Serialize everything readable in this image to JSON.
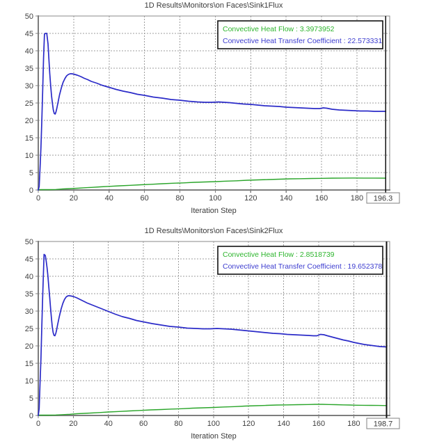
{
  "x_axis_label": "Iteration Step",
  "chart_data": [
    {
      "type": "line",
      "title": "1D Results\\Monitors\\on Faces\\Sink1Flux",
      "xlabel": "Iteration Step",
      "ylabel": "",
      "xlim": [
        0,
        198.5
      ],
      "ylim": [
        0,
        50
      ],
      "x_ticks": [
        0,
        20,
        40,
        60,
        80,
        100,
        120,
        140,
        160,
        180
      ],
      "y_ticks": [
        0,
        5,
        10,
        15,
        20,
        25,
        30,
        35,
        40,
        45,
        50
      ],
      "grid": true,
      "legend_position": "top-right",
      "cursor_x": 196.3,
      "cursor_label": "196.3",
      "legend": [
        {
          "label": "Convective Heat Flow : 3.3973952",
          "color": "#2db52d"
        },
        {
          "label": "Convective Heat Transfer Coefficient : 22.573331",
          "color": "#3c3ccf"
        }
      ],
      "series": [
        {
          "name": "Convective Heat Transfer Coefficient",
          "color": "#2b2bc8",
          "width": 1.7,
          "points": [
            [
              0,
              0
            ],
            [
              0.5,
              1
            ],
            [
              1,
              6
            ],
            [
              1.5,
              12
            ],
            [
              2,
              20
            ],
            [
              2.5,
              29
            ],
            [
              3,
              38
            ],
            [
              3.5,
              44.8
            ],
            [
              4,
              45
            ],
            [
              4.8,
              45
            ],
            [
              5.5,
              42
            ],
            [
              6,
              37.5
            ],
            [
              6.5,
              33.5
            ],
            [
              7,
              30
            ],
            [
              7.5,
              27
            ],
            [
              8,
              24.8
            ],
            [
              8.5,
              23
            ],
            [
              9,
              22
            ],
            [
              9.5,
              21.8
            ],
            [
              10,
              22.4
            ],
            [
              10.5,
              23.5
            ],
            [
              11,
              24.8
            ],
            [
              12,
              27.3
            ],
            [
              13,
              29.3
            ],
            [
              14,
              30.9
            ],
            [
              15,
              32
            ],
            [
              16,
              32.8
            ],
            [
              17,
              33.2
            ],
            [
              18,
              33.4
            ],
            [
              19,
              33.4
            ],
            [
              20,
              33.3
            ],
            [
              22,
              33
            ],
            [
              24,
              32.6
            ],
            [
              26,
              32.1
            ],
            [
              28,
              31.7
            ],
            [
              30,
              31.2
            ],
            [
              33,
              30.7
            ],
            [
              36,
              30.1
            ],
            [
              40,
              29.5
            ],
            [
              44,
              28.9
            ],
            [
              48,
              28.4
            ],
            [
              52,
              28
            ],
            [
              56,
              27.5
            ],
            [
              60,
              27.2
            ],
            [
              65,
              26.7
            ],
            [
              70,
              26.4
            ],
            [
              75,
              26
            ],
            [
              80,
              25.8
            ],
            [
              85,
              25.5
            ],
            [
              90,
              25.3
            ],
            [
              94,
              25.2
            ],
            [
              98,
              25.2
            ],
            [
              102,
              25.3
            ],
            [
              105,
              25.2
            ],
            [
              108,
              25.1
            ],
            [
              112,
              24.9
            ],
            [
              116,
              24.7
            ],
            [
              120,
              24.6
            ],
            [
              124,
              24.4
            ],
            [
              128,
              24.2
            ],
            [
              132,
              24.1
            ],
            [
              136,
              24
            ],
            [
              140,
              23.8
            ],
            [
              144,
              23.7
            ],
            [
              148,
              23.6
            ],
            [
              152,
              23.5
            ],
            [
              156,
              23.4
            ],
            [
              159,
              23.4
            ],
            [
              161,
              23.6
            ],
            [
              163,
              23.5
            ],
            [
              166,
              23.2
            ],
            [
              170,
              23
            ],
            [
              174,
              22.9
            ],
            [
              178,
              22.8
            ],
            [
              182,
              22.7
            ],
            [
              186,
              22.7
            ],
            [
              190,
              22.6
            ],
            [
              193,
              22.6
            ],
            [
              196.3,
              22.6
            ]
          ]
        },
        {
          "name": "Convective Heat Flow",
          "color": "#2aa52a",
          "width": 1.4,
          "points": [
            [
              0,
              0.1
            ],
            [
              6,
              0.1
            ],
            [
              10,
              0.15
            ],
            [
              14,
              0.3
            ],
            [
              18,
              0.4
            ],
            [
              22,
              0.5
            ],
            [
              26,
              0.65
            ],
            [
              30,
              0.75
            ],
            [
              35,
              0.9
            ],
            [
              40,
              1.05
            ],
            [
              46,
              1.2
            ],
            [
              52,
              1.35
            ],
            [
              58,
              1.5
            ],
            [
              64,
              1.65
            ],
            [
              70,
              1.8
            ],
            [
              76,
              1.95
            ],
            [
              82,
              2.05
            ],
            [
              88,
              2.2
            ],
            [
              94,
              2.3
            ],
            [
              100,
              2.4
            ],
            [
              106,
              2.55
            ],
            [
              112,
              2.65
            ],
            [
              118,
              2.8
            ],
            [
              124,
              2.9
            ],
            [
              130,
              3
            ],
            [
              136,
              3.1
            ],
            [
              142,
              3.2
            ],
            [
              148,
              3.25
            ],
            [
              154,
              3.3
            ],
            [
              160,
              3.35
            ],
            [
              166,
              3.4
            ],
            [
              172,
              3.42
            ],
            [
              178,
              3.43
            ],
            [
              184,
              3.42
            ],
            [
              190,
              3.41
            ],
            [
              196.3,
              3.4
            ]
          ]
        }
      ]
    },
    {
      "type": "line",
      "title": "1D Results\\Monitors\\on Faces\\Sink2Flux",
      "xlabel": "Iteration Step",
      "ylabel": "",
      "xlim": [
        0,
        200.5
      ],
      "ylim": [
        0,
        50
      ],
      "x_ticks": [
        0,
        20,
        40,
        60,
        80,
        100,
        120,
        140,
        160,
        180
      ],
      "y_ticks": [
        0,
        5,
        10,
        15,
        20,
        25,
        30,
        35,
        40,
        45,
        50
      ],
      "grid": true,
      "legend_position": "top-right",
      "cursor_x": 198.7,
      "cursor_label": "198.7",
      "legend": [
        {
          "label": "Convective Heat Flow : 2.8518739",
          "color": "#2db52d"
        },
        {
          "label": "Convective Heat Transfer Coefficient : 19.652378",
          "color": "#3c3ccf"
        }
      ],
      "series": [
        {
          "name": "Convective Heat Transfer Coefficient",
          "color": "#2b2bc8",
          "width": 1.7,
          "points": [
            [
              0,
              0
            ],
            [
              0.5,
              2
            ],
            [
              1,
              9
            ],
            [
              1.5,
              16
            ],
            [
              2,
              25
            ],
            [
              2.5,
              34
            ],
            [
              3,
              42
            ],
            [
              3.3,
              46.3
            ],
            [
              4,
              46
            ],
            [
              4.5,
              44.5
            ],
            [
              5,
              42.5
            ],
            [
              5.5,
              40
            ],
            [
              6,
              37
            ],
            [
              6.5,
              34
            ],
            [
              7,
              31
            ],
            [
              7.5,
              28
            ],
            [
              8,
              25.5
            ],
            [
              8.5,
              23.8
            ],
            [
              9,
              23
            ],
            [
              9.5,
              22.9
            ],
            [
              10,
              23.6
            ],
            [
              10.5,
              24.6
            ],
            [
              11,
              26
            ],
            [
              12,
              28.4
            ],
            [
              13,
              30.5
            ],
            [
              14,
              32.2
            ],
            [
              15,
              33.4
            ],
            [
              16,
              34.1
            ],
            [
              17,
              34.4
            ],
            [
              18,
              34.4
            ],
            [
              19,
              34.3
            ],
            [
              20,
              34.2
            ],
            [
              22,
              33.8
            ],
            [
              24,
              33.3
            ],
            [
              26,
              32.8
            ],
            [
              28,
              32.3
            ],
            [
              30,
              31.9
            ],
            [
              33,
              31.3
            ],
            [
              36,
              30.7
            ],
            [
              40,
              29.9
            ],
            [
              44,
              29.1
            ],
            [
              48,
              28.4
            ],
            [
              52,
              27.9
            ],
            [
              56,
              27.3
            ],
            [
              60,
              26.9
            ],
            [
              65,
              26.4
            ],
            [
              70,
              26
            ],
            [
              75,
              25.6
            ],
            [
              80,
              25.4
            ],
            [
              85,
              25.1
            ],
            [
              90,
              25
            ],
            [
              94,
              24.9
            ],
            [
              98,
              24.9
            ],
            [
              102,
              25
            ],
            [
              106,
              24.9
            ],
            [
              110,
              24.8
            ],
            [
              114,
              24.6
            ],
            [
              118,
              24.4
            ],
            [
              122,
              24.2
            ],
            [
              126,
              24
            ],
            [
              130,
              23.8
            ],
            [
              134,
              23.6
            ],
            [
              138,
              23.5
            ],
            [
              142,
              23.3
            ],
            [
              146,
              23.2
            ],
            [
              150,
              23.1
            ],
            [
              154,
              23
            ],
            [
              157,
              22.9
            ],
            [
              159,
              22.9
            ],
            [
              161,
              23.3
            ],
            [
              163,
              23.2
            ],
            [
              165,
              22.9
            ],
            [
              168,
              22.5
            ],
            [
              171,
              22.1
            ],
            [
              174,
              21.7
            ],
            [
              177,
              21.4
            ],
            [
              180,
              21
            ],
            [
              183,
              20.7
            ],
            [
              186,
              20.4
            ],
            [
              189,
              20.2
            ],
            [
              192,
              20
            ],
            [
              195,
              19.8
            ],
            [
              198.7,
              19.7
            ]
          ]
        },
        {
          "name": "Convective Heat Flow",
          "color": "#2aa52a",
          "width": 1.4,
          "points": [
            [
              0,
              0.1
            ],
            [
              6,
              0.1
            ],
            [
              10,
              0.15
            ],
            [
              14,
              0.25
            ],
            [
              18,
              0.35
            ],
            [
              22,
              0.5
            ],
            [
              26,
              0.6
            ],
            [
              30,
              0.7
            ],
            [
              35,
              0.85
            ],
            [
              40,
              1
            ],
            [
              46,
              1.15
            ],
            [
              52,
              1.3
            ],
            [
              58,
              1.45
            ],
            [
              64,
              1.6
            ],
            [
              70,
              1.7
            ],
            [
              76,
              1.85
            ],
            [
              82,
              1.95
            ],
            [
              88,
              2.1
            ],
            [
              94,
              2.2
            ],
            [
              100,
              2.3
            ],
            [
              106,
              2.45
            ],
            [
              112,
              2.55
            ],
            [
              118,
              2.7
            ],
            [
              124,
              2.8
            ],
            [
              130,
              2.9
            ],
            [
              136,
              3
            ],
            [
              142,
              3.05
            ],
            [
              148,
              3.1
            ],
            [
              154,
              3.15
            ],
            [
              158,
              3.2
            ],
            [
              162,
              3.2
            ],
            [
              166,
              3.15
            ],
            [
              170,
              3.1
            ],
            [
              174,
              3.05
            ],
            [
              178,
              3
            ],
            [
              182,
              2.95
            ],
            [
              186,
              2.92
            ],
            [
              190,
              2.9
            ],
            [
              194,
              2.87
            ],
            [
              198.7,
              2.85
            ]
          ]
        }
      ]
    }
  ]
}
